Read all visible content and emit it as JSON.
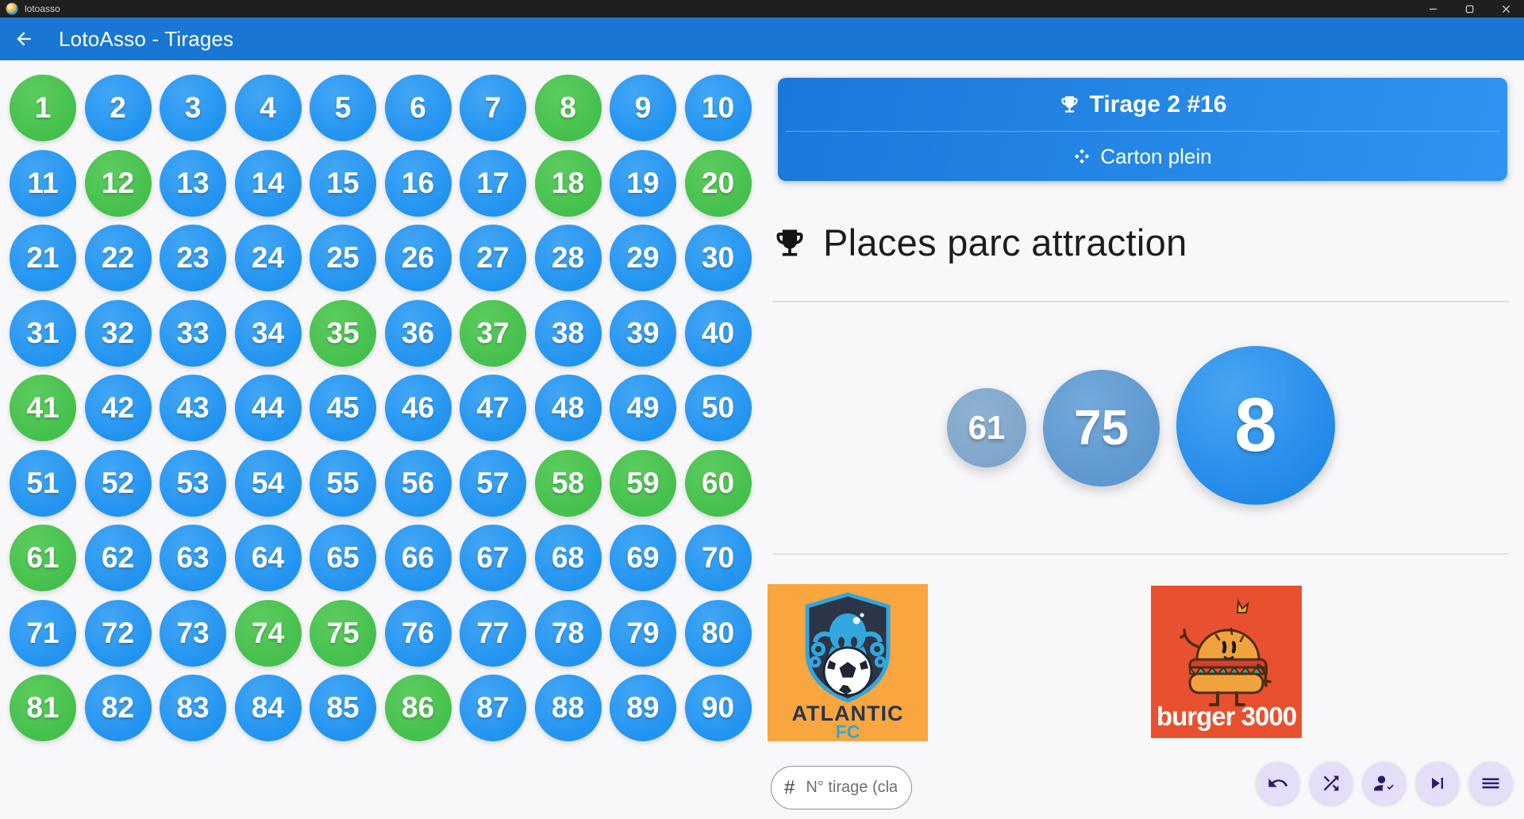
{
  "window": {
    "title": "lotoasso"
  },
  "appbar": {
    "title": "LotoAsso - Tirages"
  },
  "draw_banner": {
    "title": "Tirage 2 #16",
    "subtitle": "Carton plein"
  },
  "prize": {
    "title": "Places parc attraction"
  },
  "board": {
    "total": 90,
    "drawn": [
      1,
      8,
      12,
      18,
      20,
      35,
      37,
      41,
      58,
      59,
      60,
      61,
      74,
      75,
      81,
      86
    ]
  },
  "last_drawn": {
    "values": [
      61,
      75,
      8
    ]
  },
  "sponsors": [
    {
      "id": "atlantic-fc",
      "line1": "ATLANTIC",
      "line2": "FC"
    },
    {
      "id": "burger-3000",
      "label": "burger 3000"
    }
  ],
  "tirage_input": {
    "prefix": "#",
    "placeholder": "N° tirage (cla..."
  },
  "actions": [
    "undo",
    "shuffle",
    "player-check",
    "next",
    "menu"
  ],
  "colors": {
    "appbar_blue": "#1976d2",
    "ball_blue": "#2193f0",
    "ball_green": "#44c04c",
    "banner_blue": "#2189ea",
    "drawn_small": "#84a9cc",
    "drawn_medium": "#6aa0d4",
    "drawn_large": "#2791ec",
    "action_bg": "#e4def9",
    "action_icon": "#2d1b69",
    "atlantic_bg": "#f7a640",
    "burger_bg": "#e8502f"
  }
}
